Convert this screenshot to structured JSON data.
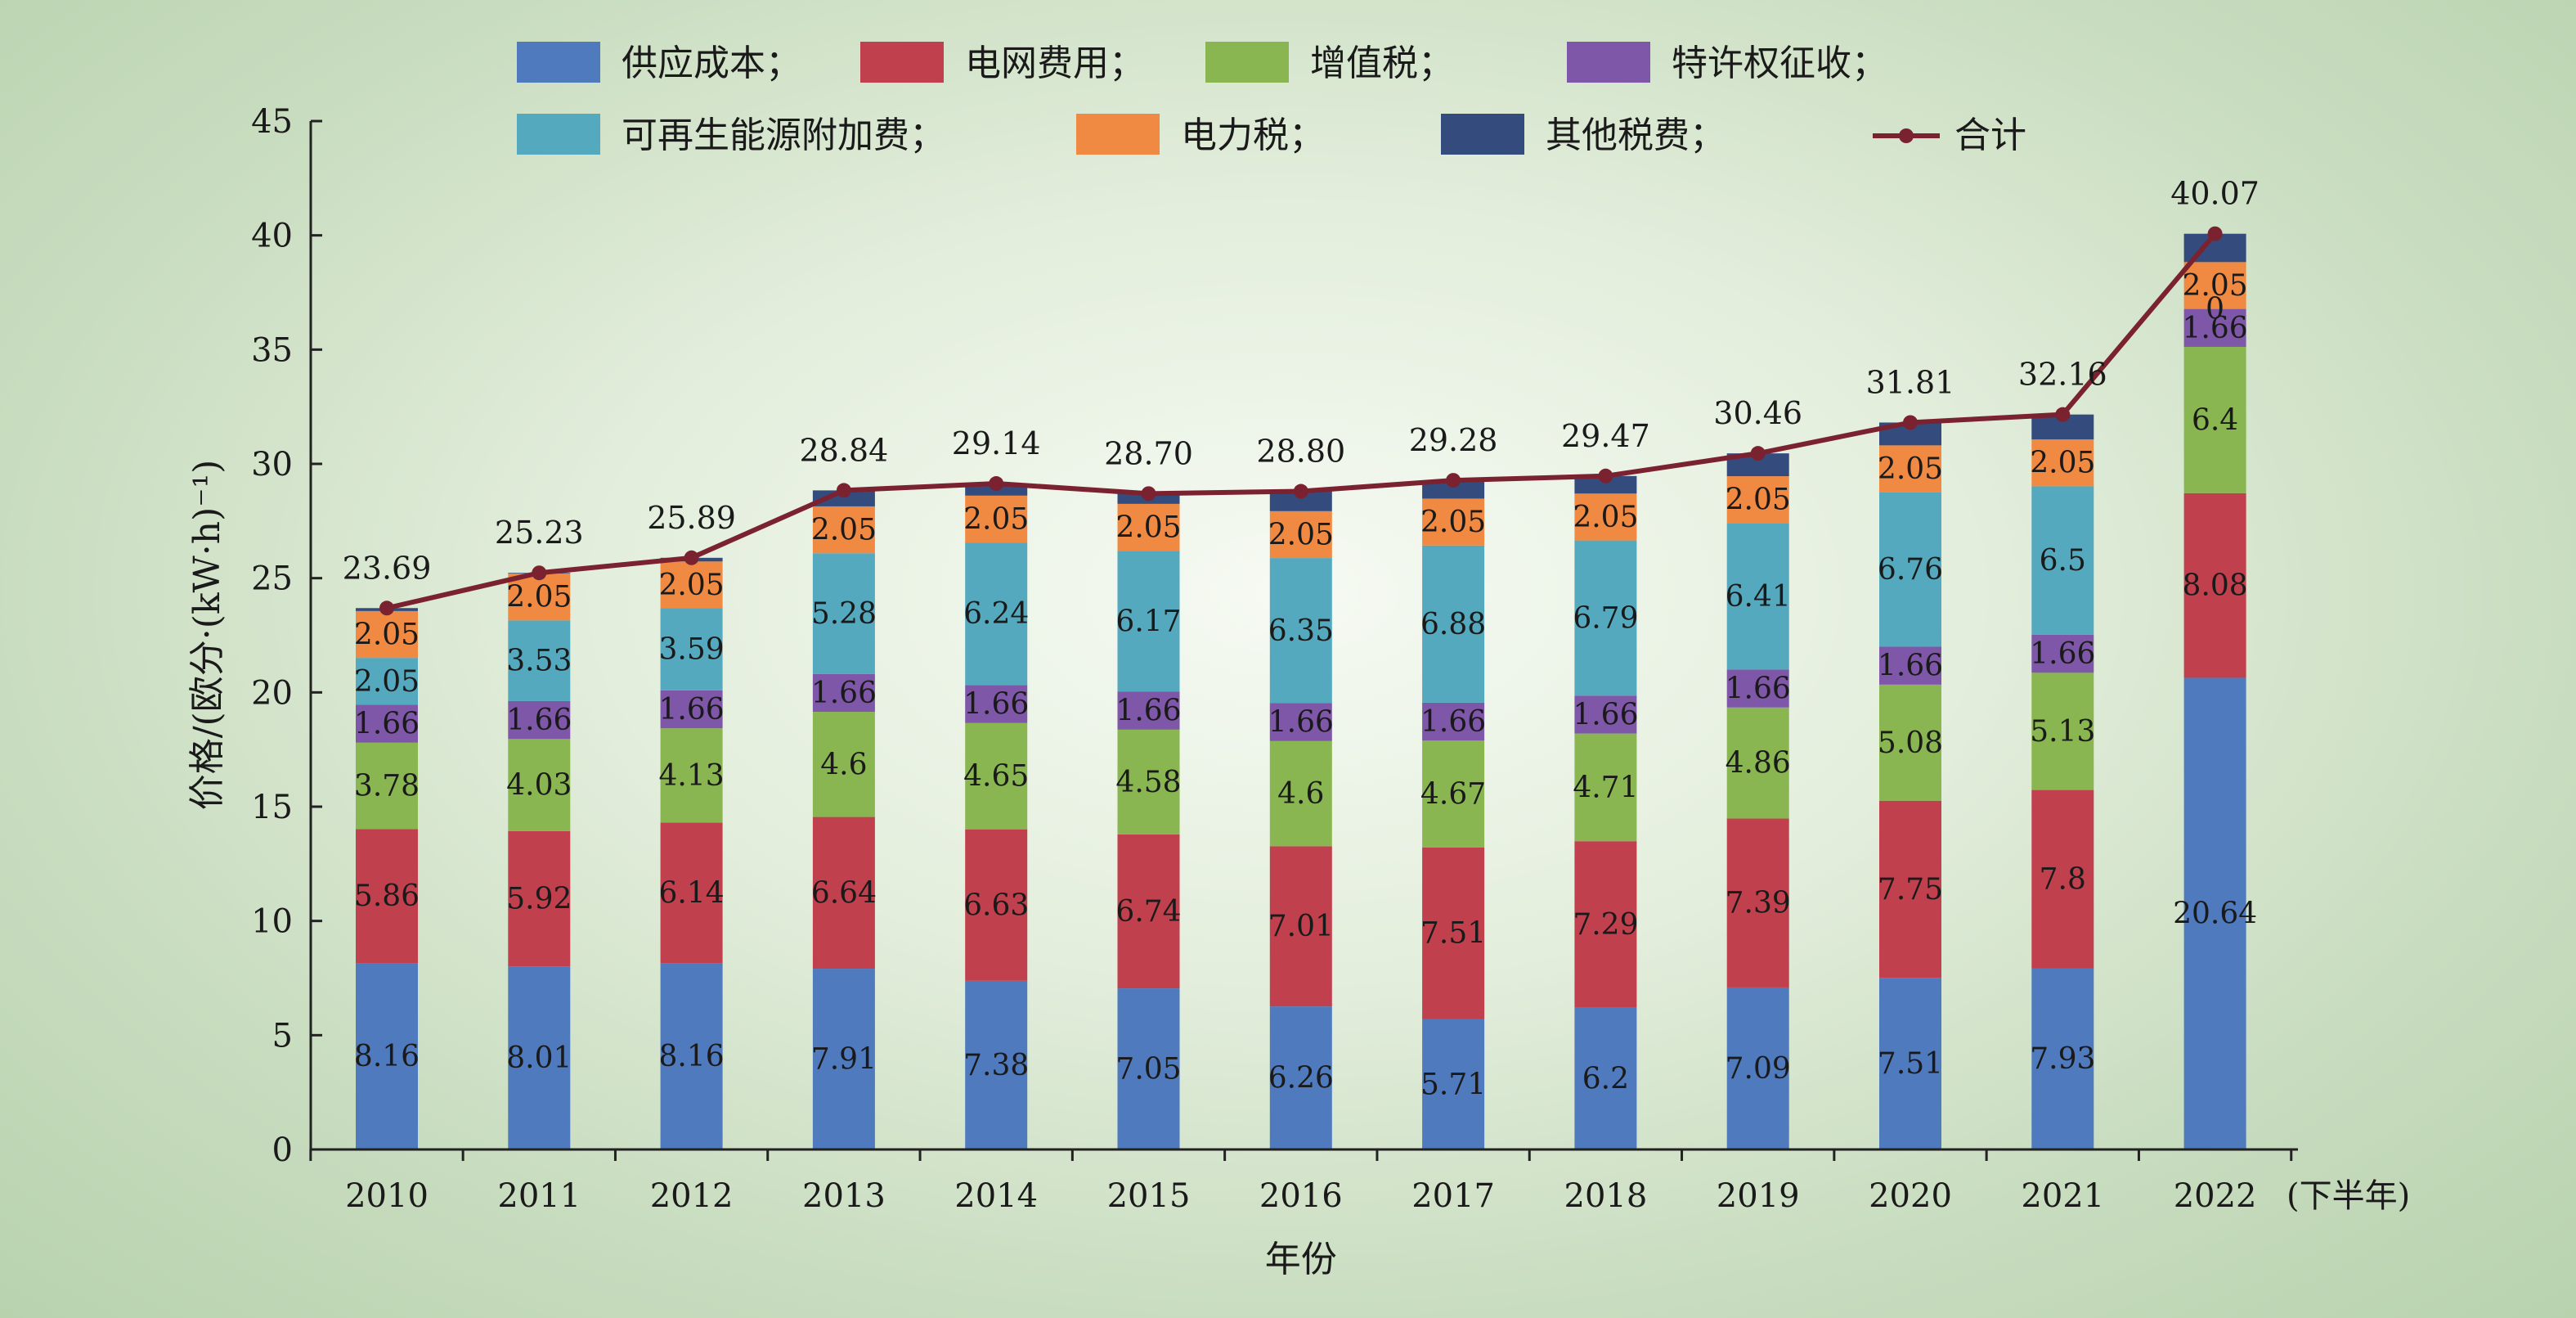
{
  "chart_data": {
    "type": "bar",
    "stacked": true,
    "xlabel": "年份",
    "xlabel_note": "(下半年)",
    "ylabel": "价格/(欧分·(kW·h)⁻¹)",
    "ylim": [
      0,
      45
    ],
    "yticks": [
      0,
      5,
      10,
      15,
      20,
      25,
      30,
      35,
      40,
      45
    ],
    "categories": [
      "2010",
      "2011",
      "2012",
      "2013",
      "2014",
      "2015",
      "2016",
      "2017",
      "2018",
      "2019",
      "2020",
      "2021",
      "2022"
    ],
    "series": [
      {
        "name": "供应成本；",
        "color": "#4f7bbe",
        "values": [
          8.16,
          8.01,
          8.16,
          7.91,
          7.38,
          7.05,
          6.26,
          5.71,
          6.2,
          7.09,
          7.51,
          7.93,
          20.64
        ]
      },
      {
        "name": "电网费用；",
        "color": "#c0404e",
        "values": [
          5.86,
          5.92,
          6.14,
          6.64,
          6.63,
          6.74,
          7.01,
          7.51,
          7.29,
          7.39,
          7.75,
          7.8,
          8.08
        ]
      },
      {
        "name": "增值税；",
        "color": "#89b651",
        "values": [
          3.78,
          4.03,
          4.13,
          4.6,
          4.65,
          4.58,
          4.6,
          4.67,
          4.71,
          4.86,
          5.08,
          5.13,
          6.4
        ]
      },
      {
        "name": "特许权征收；",
        "color": "#7e57a8",
        "values": [
          1.66,
          1.66,
          1.66,
          1.66,
          1.66,
          1.66,
          1.66,
          1.66,
          1.66,
          1.66,
          1.66,
          1.66,
          1.66
        ]
      },
      {
        "name": "可再生能源附加费；",
        "color": "#55a9bf",
        "values": [
          2.05,
          3.53,
          3.59,
          5.28,
          6.24,
          6.17,
          6.35,
          6.88,
          6.79,
          6.41,
          6.76,
          6.5,
          0
        ]
      },
      {
        "name": "电力税；",
        "color": "#f08a42",
        "values": [
          2.05,
          2.05,
          2.05,
          2.05,
          2.05,
          2.05,
          2.05,
          2.05,
          2.05,
          2.05,
          2.05,
          2.05,
          2.05
        ]
      },
      {
        "name": "其他税费；",
        "color": "#344c7d",
        "values": [
          0.13,
          0.03,
          0.16,
          0.7,
          0.53,
          0.45,
          0.87,
          0.8,
          0.77,
          1.0,
          1.0,
          1.09,
          1.24
        ]
      }
    ],
    "seg_labels": [
      [
        "8.16",
        "8.01",
        "8.16",
        "7.91",
        "7.38",
        "7.05",
        "6.26",
        "5.71",
        "6.2",
        "7.09",
        "7.51",
        "7.93",
        "20.64"
      ],
      [
        "5.86",
        "5.92",
        "6.14",
        "6.64",
        "6.63",
        "6.74",
        "7.01",
        "7.51",
        "7.29",
        "7.39",
        "7.75",
        "7.8",
        "8.08"
      ],
      [
        "3.78",
        "4.03",
        "4.13",
        "4.6",
        "4.65",
        "4.58",
        "4.6",
        "4.67",
        "4.71",
        "4.86",
        "5.08",
        "5.13",
        "6.4"
      ],
      [
        "1.66",
        "1.66",
        "1.66",
        "1.66",
        "1.66",
        "1.66",
        "1.66",
        "1.66",
        "1.66",
        "1.66",
        "1.66",
        "1.66",
        "1.66"
      ],
      [
        "2.05",
        "3.53",
        "3.59",
        "5.28",
        "6.24",
        "6.17",
        "6.35",
        "6.88",
        "6.79",
        "6.41",
        "6.76",
        "6.5",
        "0"
      ],
      [
        "2.05",
        "2.05",
        "2.05",
        "2.05",
        "2.05",
        "2.05",
        "2.05",
        "2.05",
        "2.05",
        "2.05",
        "2.05",
        "2.05",
        "2.05"
      ],
      [
        "",
        "",
        "",
        "",
        "",
        "",
        "",
        "",
        "",
        "",
        "",
        "",
        ""
      ]
    ],
    "total": {
      "name": "合计",
      "color": "#7b2230",
      "values": [
        23.69,
        25.23,
        25.89,
        28.84,
        29.14,
        28.7,
        28.8,
        29.28,
        29.47,
        30.46,
        31.81,
        32.16,
        40.07
      ],
      "labels": [
        "23.69",
        "25.23",
        "25.89",
        "28.84",
        "29.14",
        "28.70",
        "28.80",
        "29.28",
        "29.47",
        "30.46",
        "31.81",
        "32.16",
        "40.07"
      ]
    },
    "grid": false,
    "legend_position": "top"
  }
}
